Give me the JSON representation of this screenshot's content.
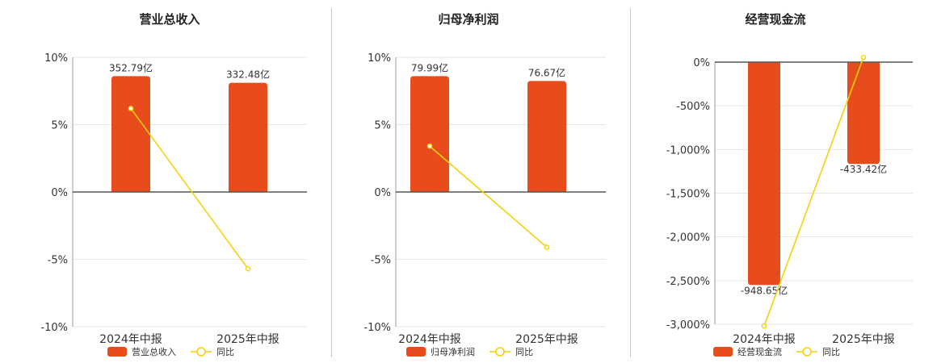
{
  "colors": {
    "bar": "#e84c1c",
    "line": "#f5d10a",
    "axis": "#555555",
    "grid": "#e6e6e6",
    "text": "#333333"
  },
  "chart_data": [
    {
      "type": "bar",
      "title": "营业总收入",
      "categories": [
        "2024年中报",
        "2025年中报"
      ],
      "bar_series": {
        "name": "营业总收入",
        "values": [
          352.79,
          332.48
        ],
        "labels": [
          "352.79亿",
          "332.48亿"
        ]
      },
      "line_series": {
        "name": "同比",
        "values": [
          6.2,
          -5.7
        ]
      },
      "y_axis": {
        "min": -10,
        "max": 10,
        "ticks": [
          10,
          5,
          0,
          -5,
          -10
        ],
        "tick_labels": [
          "10%",
          "5%",
          "0%",
          "-5%",
          "-10%"
        ]
      },
      "legend": {
        "position": "bottom",
        "items": [
          "营业总收入",
          "同比"
        ]
      }
    },
    {
      "type": "bar",
      "title": "归母净利润",
      "categories": [
        "2024年中报",
        "2025年中报"
      ],
      "bar_series": {
        "name": "归母净利润",
        "values": [
          79.99,
          76.67
        ],
        "labels": [
          "79.99亿",
          "76.67亿"
        ]
      },
      "line_series": {
        "name": "同比",
        "values": [
          3.4,
          -4.1
        ]
      },
      "y_axis": {
        "min": -10,
        "max": 10,
        "ticks": [
          10,
          5,
          0,
          -5,
          -10
        ],
        "tick_labels": [
          "10%",
          "5%",
          "0%",
          "-5%",
          "-10%"
        ]
      },
      "legend": {
        "position": "bottom",
        "items": [
          "归母净利润",
          "同比"
        ]
      }
    },
    {
      "type": "bar",
      "title": "经营现金流",
      "categories": [
        "2024年中报",
        "2025年中报"
      ],
      "bar_series": {
        "name": "经营现金流",
        "values": [
          -948.65,
          -433.42
        ],
        "labels": [
          "-948.65亿",
          "-433.42亿"
        ]
      },
      "line_series": {
        "name": "同比",
        "values": [
          -3020,
          55
        ]
      },
      "y_axis": {
        "min": -3000,
        "max": 0,
        "ticks": [
          0,
          -500,
          -1000,
          -1500,
          -2000,
          -2500,
          -3000
        ],
        "tick_labels": [
          "0%",
          "-500%",
          "-1,000%",
          "-1,500%",
          "-2,000%",
          "-2,500%",
          "-3,000%"
        ]
      },
      "legend": {
        "position": "bottom",
        "items": [
          "经营现金流",
          "同比"
        ]
      }
    }
  ]
}
